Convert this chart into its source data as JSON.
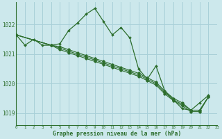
{
  "title": "Graphe pression niveau de la mer (hPa)",
  "background_color": "#cce8ec",
  "grid_color": "#a8d0d8",
  "line_color": "#2d6e2d",
  "xlim": [
    0,
    23
  ],
  "ylim": [
    1018.6,
    1022.75
  ],
  "yticks": [
    1019,
    1020,
    1021,
    1022
  ],
  "xticks": [
    0,
    1,
    2,
    3,
    4,
    5,
    6,
    7,
    8,
    9,
    10,
    11,
    12,
    13,
    14,
    15,
    16,
    17,
    18,
    19,
    20,
    21,
    22,
    23
  ],
  "line1_x": [
    0,
    1,
    2,
    3,
    4,
    5,
    6,
    7,
    8,
    9,
    10,
    11,
    12,
    13,
    14,
    15,
    16,
    17,
    18,
    19,
    20,
    21,
    22
  ],
  "line1_y": [
    1021.65,
    1021.3,
    1021.5,
    1021.3,
    1021.3,
    1021.35,
    1021.8,
    1022.05,
    1022.35,
    1022.55,
    1022.1,
    1021.65,
    1021.9,
    1021.55,
    1020.5,
    1020.15,
    1020.6,
    1019.75,
    1019.45,
    1019.15,
    1019.1,
    1019.35,
    1019.6
  ],
  "line2_x": [
    0,
    4,
    5,
    6,
    7,
    8,
    9,
    10,
    11,
    12,
    13,
    14,
    15,
    16,
    17,
    18,
    19,
    20,
    21,
    22
  ],
  "line2_y": [
    1021.65,
    1021.3,
    1021.25,
    1021.15,
    1021.05,
    1020.95,
    1020.85,
    1020.75,
    1020.65,
    1020.55,
    1020.45,
    1020.35,
    1020.2,
    1020.05,
    1019.75,
    1019.5,
    1019.35,
    1019.1,
    1019.1,
    1019.55
  ],
  "line3_x": [
    0,
    4,
    5,
    6,
    7,
    8,
    9,
    10,
    11,
    12,
    13,
    14,
    15,
    16,
    17,
    18,
    19,
    20,
    21,
    22
  ],
  "line3_y": [
    1021.65,
    1021.3,
    1021.2,
    1021.1,
    1021.0,
    1020.9,
    1020.8,
    1020.7,
    1020.6,
    1020.5,
    1020.4,
    1020.3,
    1020.15,
    1020.0,
    1019.7,
    1019.45,
    1019.3,
    1019.1,
    1019.1,
    1019.55
  ],
  "line4_x": [
    0,
    4,
    5,
    6,
    7,
    8,
    9,
    10,
    11,
    12,
    13,
    14,
    15,
    16,
    17,
    18,
    19,
    20,
    21,
    22
  ],
  "line4_y": [
    1021.65,
    1021.3,
    1021.15,
    1021.05,
    1020.95,
    1020.85,
    1020.75,
    1020.65,
    1020.55,
    1020.45,
    1020.35,
    1020.25,
    1020.1,
    1019.95,
    1019.65,
    1019.42,
    1019.25,
    1019.05,
    1019.05,
    1019.55
  ]
}
